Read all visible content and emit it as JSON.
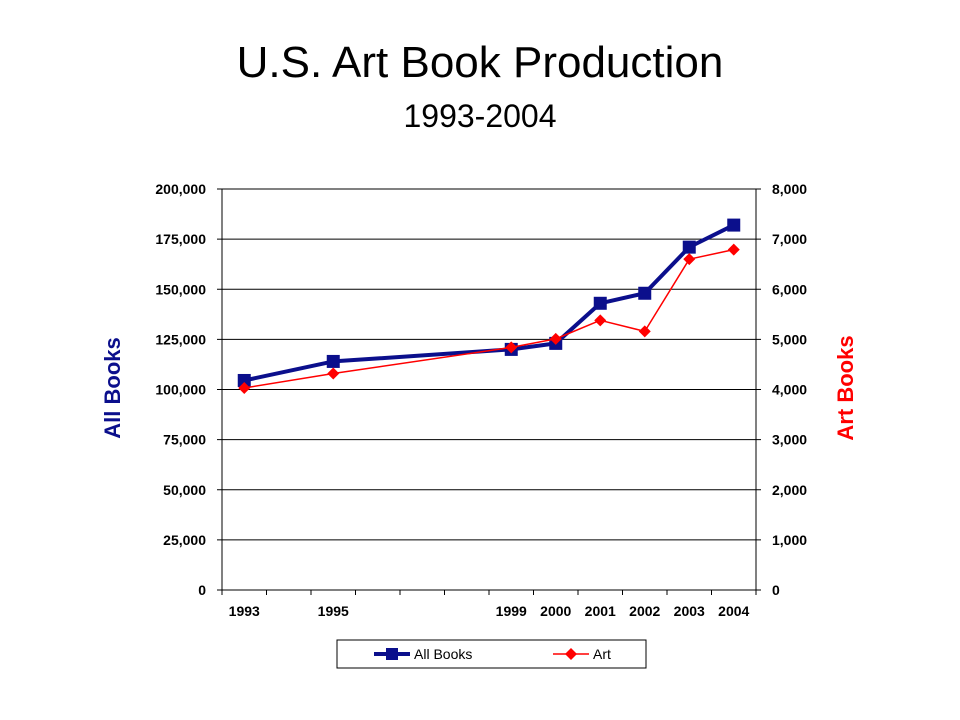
{
  "chart_data": {
    "type": "line",
    "title": "U.S. Art Book Production",
    "subtitle": "1993-2004",
    "x": [
      1993,
      1995,
      1999,
      2000,
      2001,
      2002,
      2003,
      2004
    ],
    "x_tick_labels": [
      "1993",
      "1995",
      "1999",
      "2000",
      "2001",
      "2002",
      "2003",
      "2004"
    ],
    "xlim": [
      1992.5,
      2004.5
    ],
    "y_left": {
      "label": "All Books",
      "color": "#0b0f8c",
      "ylim": [
        0,
        200000
      ],
      "ticks": [
        0,
        25000,
        50000,
        75000,
        100000,
        125000,
        150000,
        175000,
        200000
      ],
      "tick_labels": [
        "0",
        "25,000",
        "50,000",
        "75,000",
        "100,000",
        "125,000",
        "150,000",
        "175,000",
        "200,000"
      ]
    },
    "y_right": {
      "label": "Art Books",
      "color": "#ff0000",
      "ylim": [
        0,
        8000
      ],
      "ticks": [
        0,
        1000,
        2000,
        3000,
        4000,
        5000,
        6000,
        7000,
        8000
      ],
      "tick_labels": [
        "0",
        "1,000",
        "2,000",
        "3,000",
        "4,000",
        "5,000",
        "6,000",
        "7,000",
        "8,000"
      ]
    },
    "series": [
      {
        "name": "All Books",
        "axis": "left",
        "color": "#0b0f8c",
        "marker": "square",
        "values": [
          104500,
          114000,
          120000,
          123000,
          143000,
          148000,
          171000,
          182000
        ]
      },
      {
        "name": "Art",
        "axis": "right",
        "color": "#ff0000",
        "marker": "diamond",
        "values": [
          4030,
          4320,
          4840,
          5010,
          5380,
          5160,
          6600,
          6790
        ]
      }
    ],
    "grid": true,
    "legend_position": "bottom"
  }
}
